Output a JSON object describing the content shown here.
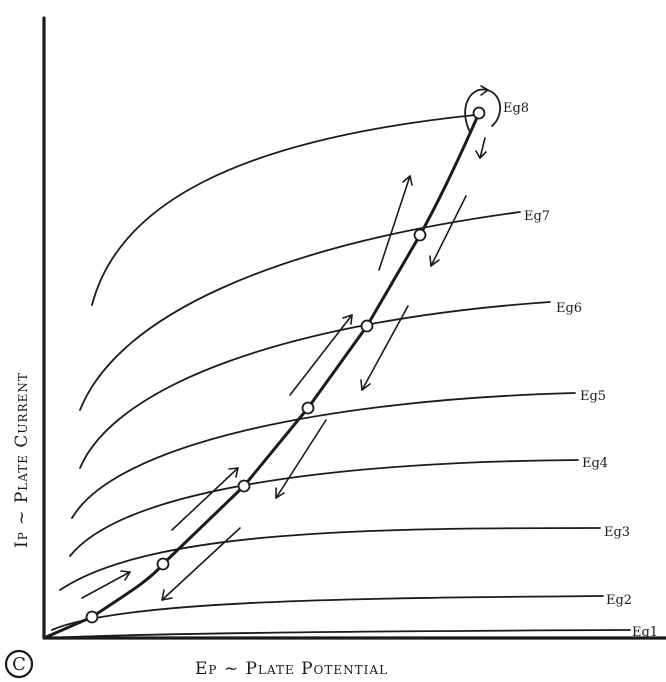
{
  "diagram": {
    "x_axis_label": "Ep ~ Plate Potential",
    "y_axis_label": "Ip ~ Plate Current",
    "corner_mark": "C",
    "curve_labels": [
      "Eg8",
      "Eg7",
      "Eg6",
      "Eg5",
      "Eg4",
      "Eg3",
      "Eg2",
      "Eg1"
    ]
  },
  "colors": {
    "ink": "#1b1b1b",
    "paper": "#ffffff"
  }
}
